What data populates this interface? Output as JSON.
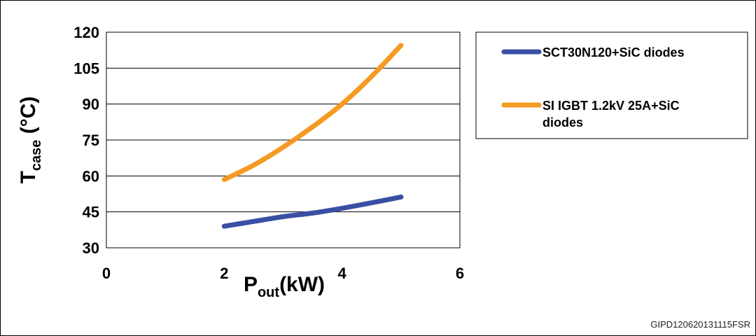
{
  "chart_data": {
    "type": "line",
    "title": "",
    "xlabel": {
      "main": "P",
      "sub": "out",
      "suffix": "(kW)"
    },
    "ylabel": {
      "main": "T",
      "sub": "case",
      "suffix": " (°C)"
    },
    "xlim": [
      0,
      6
    ],
    "ylim": [
      30,
      120
    ],
    "xticks": [
      0,
      2,
      4,
      6
    ],
    "yticks": [
      30,
      45,
      60,
      75,
      90,
      105,
      120
    ],
    "grid": "horizontal",
    "legend_position": "right",
    "series": [
      {
        "name": "SCT30N120+SiC diodes",
        "color": "#3a4fa3",
        "x": [
          2,
          2.5,
          3,
          3.5,
          4,
          4.5,
          5
        ],
        "y": [
          39,
          41,
          43,
          44.5,
          46.5,
          48.8,
          51.2
        ]
      },
      {
        "name": "SI IGBT 1.2kV 25A+SiC diodes",
        "color": "#f59a23",
        "x": [
          2,
          2.5,
          3,
          3.5,
          4,
          4.5,
          5
        ],
        "y": [
          58.5,
          64.5,
          72,
          80.5,
          90,
          101.5,
          114.5
        ]
      }
    ]
  },
  "footer": {
    "code": "GIPD120620131115FSR"
  }
}
